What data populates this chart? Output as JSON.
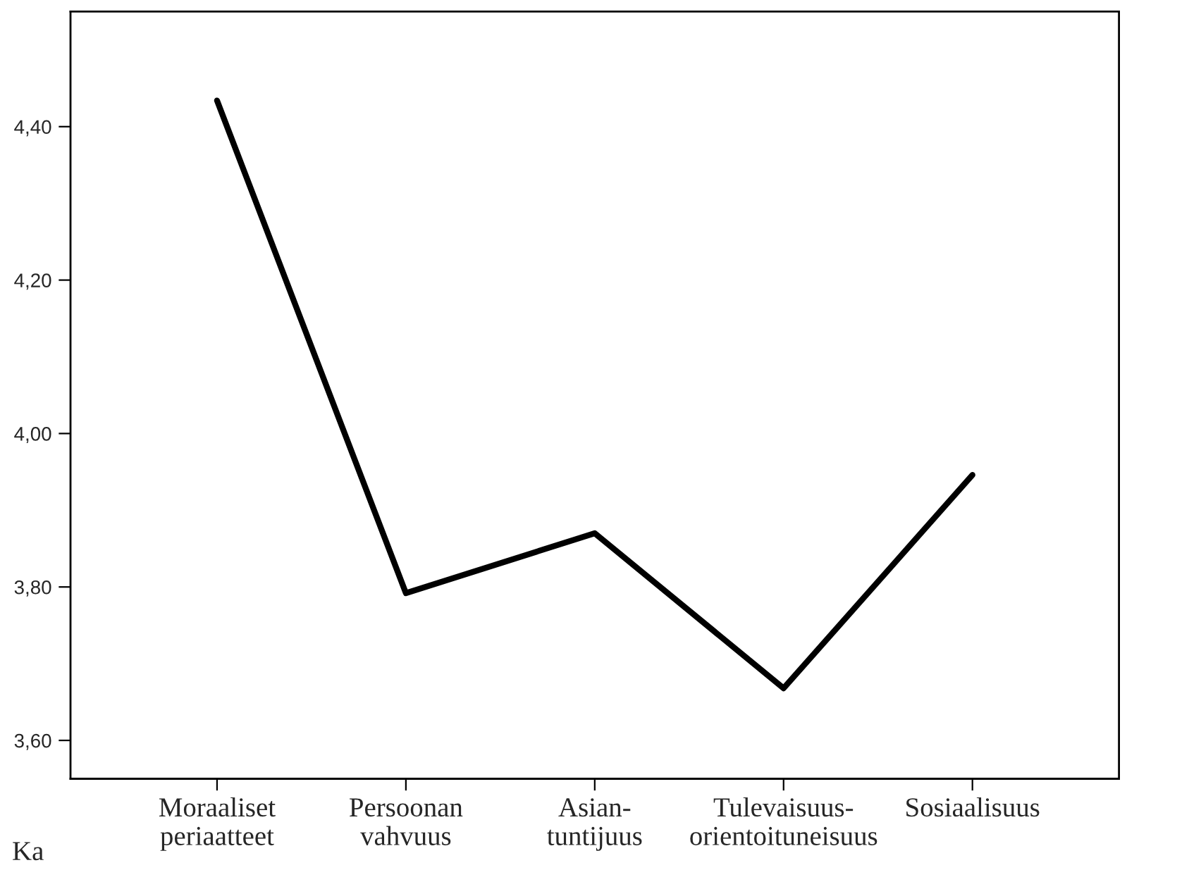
{
  "chart_data": {
    "type": "line",
    "categories": [
      "Moraaliset\nperiaatteet",
      "Persoonan\nvahvuus",
      "Asian-\ntuntijuus",
      "Tulevaisuus-\norientoituneisuus",
      "Sosiaalisuus"
    ],
    "series": [
      {
        "color": "#000000",
        "values": [
          4.434,
          3.792,
          3.87,
          3.668,
          3.946
        ]
      }
    ],
    "ylim": [
      3.55,
      4.55
    ],
    "yticks": [
      {
        "value": 3.6,
        "label": "3,60"
      },
      {
        "value": 3.8,
        "label": "3,80"
      },
      {
        "value": 4.0,
        "label": "4,00"
      },
      {
        "value": 4.2,
        "label": "4,20"
      },
      {
        "value": 4.4,
        "label": "4,40"
      }
    ],
    "annotations": [
      "Ka"
    ],
    "grid": false,
    "legend": false,
    "marker": "none",
    "line_style": "solid"
  }
}
